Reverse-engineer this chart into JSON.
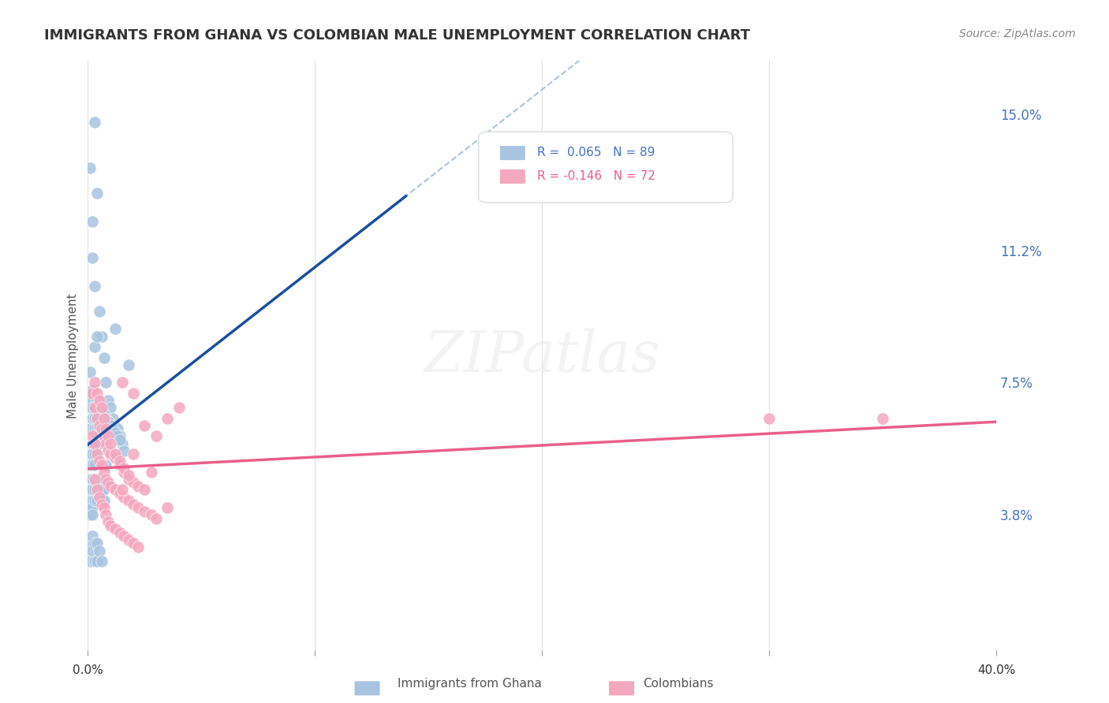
{
  "title": "IMMIGRANTS FROM GHANA VS COLOMBIAN MALE UNEMPLOYMENT CORRELATION CHART",
  "source": "Source: ZipAtlas.com",
  "ylabel": "Male Unemployment",
  "ytick_labels": [
    "3.8%",
    "7.5%",
    "11.2%",
    "15.0%"
  ],
  "ytick_values": [
    0.038,
    0.075,
    0.112,
    0.15
  ],
  "xlim": [
    0.0,
    0.4
  ],
  "ylim": [
    0.0,
    0.165
  ],
  "ghana_color": "#a8c4e0",
  "colombian_color": "#f4a8c0",
  "ghana_trendline_color": "#1a4fa0",
  "colombian_trendline_color": "#e8608a",
  "ghana_trendline_dashed_color": "#a8c4e0",
  "watermark": "ZIPatlas",
  "ghana_scatter": [
    [
      0.001,
      0.062
    ],
    [
      0.002,
      0.058
    ],
    [
      0.003,
      0.148
    ],
    [
      0.004,
      0.128
    ],
    [
      0.005,
      0.095
    ],
    [
      0.006,
      0.088
    ],
    [
      0.007,
      0.082
    ],
    [
      0.008,
      0.075
    ],
    [
      0.009,
      0.07
    ],
    [
      0.01,
      0.068
    ],
    [
      0.011,
      0.065
    ],
    [
      0.012,
      0.063
    ],
    [
      0.013,
      0.062
    ],
    [
      0.014,
      0.06
    ],
    [
      0.015,
      0.058
    ],
    [
      0.016,
      0.056
    ],
    [
      0.002,
      0.11
    ],
    [
      0.003,
      0.102
    ],
    [
      0.004,
      0.07
    ],
    [
      0.005,
      0.068
    ],
    [
      0.006,
      0.067
    ],
    [
      0.007,
      0.066
    ],
    [
      0.008,
      0.065
    ],
    [
      0.009,
      0.064
    ],
    [
      0.01,
      0.063
    ],
    [
      0.011,
      0.062
    ],
    [
      0.012,
      0.061
    ],
    [
      0.013,
      0.06
    ],
    [
      0.014,
      0.059
    ],
    [
      0.001,
      0.078
    ],
    [
      0.001,
      0.072
    ],
    [
      0.001,
      0.068
    ],
    [
      0.002,
      0.073
    ],
    [
      0.002,
      0.07
    ],
    [
      0.002,
      0.068
    ],
    [
      0.002,
      0.065
    ],
    [
      0.003,
      0.068
    ],
    [
      0.003,
      0.065
    ],
    [
      0.003,
      0.062
    ],
    [
      0.004,
      0.065
    ],
    [
      0.004,
      0.062
    ],
    [
      0.004,
      0.06
    ],
    [
      0.005,
      0.062
    ],
    [
      0.005,
      0.06
    ],
    [
      0.005,
      0.058
    ],
    [
      0.001,
      0.055
    ],
    [
      0.001,
      0.052
    ],
    [
      0.001,
      0.048
    ],
    [
      0.001,
      0.045
    ],
    [
      0.001,
      0.042
    ],
    [
      0.001,
      0.04
    ],
    [
      0.001,
      0.038
    ],
    [
      0.002,
      0.055
    ],
    [
      0.002,
      0.052
    ],
    [
      0.002,
      0.048
    ],
    [
      0.002,
      0.045
    ],
    [
      0.002,
      0.042
    ],
    [
      0.002,
      0.04
    ],
    [
      0.002,
      0.038
    ],
    [
      0.003,
      0.055
    ],
    [
      0.003,
      0.052
    ],
    [
      0.003,
      0.048
    ],
    [
      0.003,
      0.045
    ],
    [
      0.003,
      0.042
    ],
    [
      0.004,
      0.048
    ],
    [
      0.004,
      0.045
    ],
    [
      0.004,
      0.042
    ],
    [
      0.005,
      0.048
    ],
    [
      0.005,
      0.045
    ],
    [
      0.006,
      0.048
    ],
    [
      0.006,
      0.045
    ],
    [
      0.006,
      0.042
    ],
    [
      0.007,
      0.045
    ],
    [
      0.007,
      0.042
    ],
    [
      0.001,
      0.03
    ],
    [
      0.001,
      0.025
    ],
    [
      0.002,
      0.032
    ],
    [
      0.002,
      0.028
    ],
    [
      0.003,
      0.03
    ],
    [
      0.003,
      0.025
    ],
    [
      0.004,
      0.03
    ],
    [
      0.004,
      0.025
    ],
    [
      0.005,
      0.028
    ],
    [
      0.006,
      0.025
    ],
    [
      0.012,
      0.09
    ],
    [
      0.018,
      0.08
    ],
    [
      0.002,
      0.12
    ],
    [
      0.001,
      0.135
    ],
    [
      0.003,
      0.085
    ],
    [
      0.004,
      0.088
    ],
    [
      0.008,
      0.052
    ]
  ],
  "colombian_scatter": [
    [
      0.002,
      0.072
    ],
    [
      0.003,
      0.068
    ],
    [
      0.004,
      0.065
    ],
    [
      0.005,
      0.063
    ],
    [
      0.006,
      0.062
    ],
    [
      0.007,
      0.06
    ],
    [
      0.008,
      0.058
    ],
    [
      0.009,
      0.056
    ],
    [
      0.01,
      0.055
    ],
    [
      0.012,
      0.054
    ],
    [
      0.014,
      0.052
    ],
    [
      0.016,
      0.05
    ],
    [
      0.018,
      0.048
    ],
    [
      0.02,
      0.047
    ],
    [
      0.022,
      0.046
    ],
    [
      0.025,
      0.045
    ],
    [
      0.003,
      0.075
    ],
    [
      0.004,
      0.072
    ],
    [
      0.005,
      0.07
    ],
    [
      0.006,
      0.068
    ],
    [
      0.007,
      0.065
    ],
    [
      0.008,
      0.062
    ],
    [
      0.009,
      0.06
    ],
    [
      0.01,
      0.058
    ],
    [
      0.012,
      0.055
    ],
    [
      0.014,
      0.053
    ],
    [
      0.016,
      0.051
    ],
    [
      0.018,
      0.049
    ],
    [
      0.002,
      0.06
    ],
    [
      0.003,
      0.058
    ],
    [
      0.004,
      0.055
    ],
    [
      0.005,
      0.053
    ],
    [
      0.006,
      0.052
    ],
    [
      0.007,
      0.05
    ],
    [
      0.008,
      0.048
    ],
    [
      0.009,
      0.047
    ],
    [
      0.01,
      0.046
    ],
    [
      0.012,
      0.045
    ],
    [
      0.014,
      0.044
    ],
    [
      0.016,
      0.043
    ],
    [
      0.018,
      0.042
    ],
    [
      0.02,
      0.041
    ],
    [
      0.022,
      0.04
    ],
    [
      0.025,
      0.039
    ],
    [
      0.028,
      0.038
    ],
    [
      0.03,
      0.037
    ],
    [
      0.003,
      0.048
    ],
    [
      0.004,
      0.045
    ],
    [
      0.005,
      0.043
    ],
    [
      0.006,
      0.041
    ],
    [
      0.007,
      0.04
    ],
    [
      0.008,
      0.038
    ],
    [
      0.009,
      0.036
    ],
    [
      0.01,
      0.035
    ],
    [
      0.012,
      0.034
    ],
    [
      0.014,
      0.033
    ],
    [
      0.016,
      0.032
    ],
    [
      0.018,
      0.031
    ],
    [
      0.02,
      0.03
    ],
    [
      0.022,
      0.029
    ],
    [
      0.015,
      0.075
    ],
    [
      0.02,
      0.072
    ],
    [
      0.03,
      0.06
    ],
    [
      0.035,
      0.065
    ],
    [
      0.04,
      0.068
    ],
    [
      0.025,
      0.063
    ],
    [
      0.02,
      0.055
    ],
    [
      0.028,
      0.05
    ],
    [
      0.015,
      0.045
    ],
    [
      0.035,
      0.04
    ],
    [
      0.3,
      0.065
    ],
    [
      0.35,
      0.065
    ]
  ]
}
